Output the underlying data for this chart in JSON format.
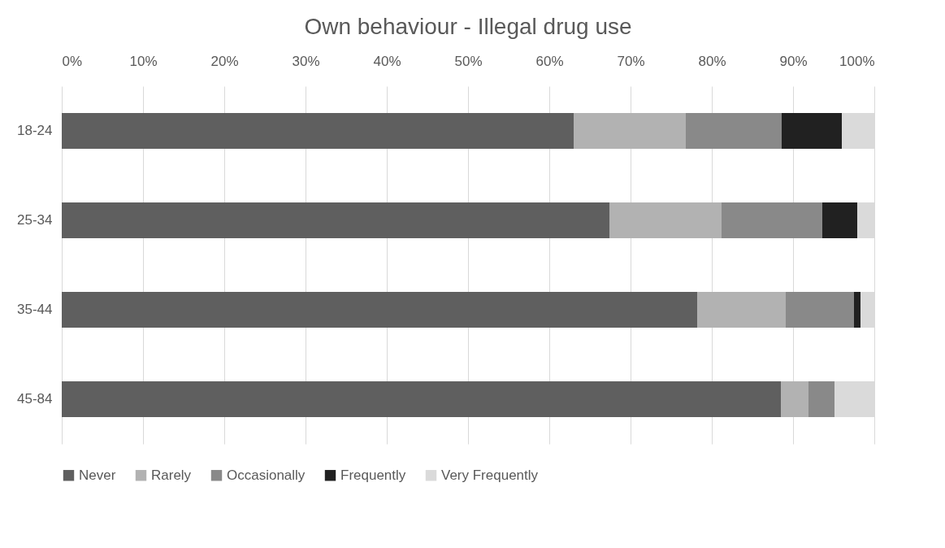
{
  "chart_data": {
    "type": "bar",
    "orientation": "horizontal",
    "stacked": true,
    "title": "Own behaviour - Illegal drug use",
    "categories": [
      "18-24",
      "25-34",
      "35-44",
      "45-84"
    ],
    "series": [
      {
        "name": "Never",
        "color": "#5f5f5f",
        "values": [
          63.0,
          67.4,
          78.2,
          88.5
        ]
      },
      {
        "name": "Rarely",
        "color": "#b2b2b2",
        "values": [
          13.8,
          13.8,
          10.9,
          3.4
        ]
      },
      {
        "name": "Occasionally",
        "color": "#898989",
        "values": [
          11.8,
          12.4,
          8.4,
          3.2
        ]
      },
      {
        "name": "Frequently",
        "color": "#212121",
        "values": [
          7.4,
          4.3,
          0.8,
          0
        ]
      },
      {
        "name": "Very Frequently",
        "color": "#dadada",
        "values": [
          4.0,
          2.1,
          1.7,
          4.9
        ]
      }
    ],
    "xlim": [
      0,
      100
    ],
    "xticks": [
      {
        "value": 0,
        "label": "0%"
      },
      {
        "value": 10,
        "label": "10%"
      },
      {
        "value": 20,
        "label": "20%"
      },
      {
        "value": 30,
        "label": "30%"
      },
      {
        "value": 40,
        "label": "40%"
      },
      {
        "value": 50,
        "label": "50%"
      },
      {
        "value": 60,
        "label": "60%"
      },
      {
        "value": 70,
        "label": "70%"
      },
      {
        "value": 80,
        "label": "80%"
      },
      {
        "value": 90,
        "label": "90%"
      },
      {
        "value": 100,
        "label": "100%"
      }
    ],
    "grid": "x",
    "legend": "bottom"
  }
}
